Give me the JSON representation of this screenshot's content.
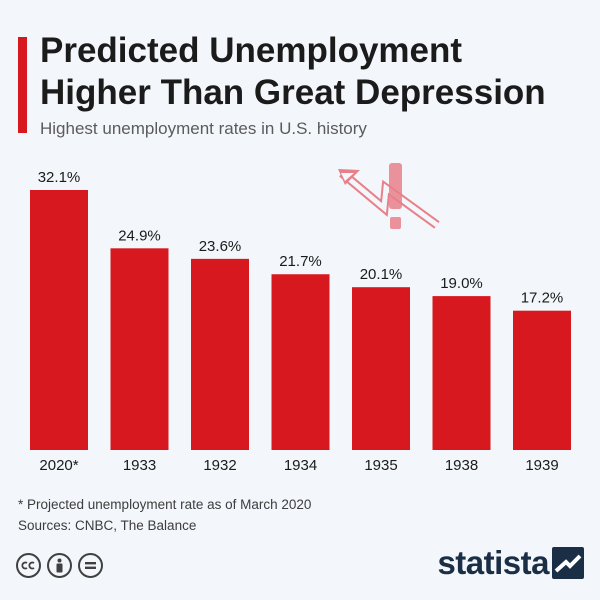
{
  "header": {
    "title": "Predicted Unemployment Higher Than Great Depression",
    "subtitle": "Highest unemployment rates in U.S. history"
  },
  "colors": {
    "accent": "#d7191f",
    "bar": "#d7191f",
    "background": "#f3f6fa",
    "brand": "#1a2e45",
    "warning_graphic": "#e8808a"
  },
  "chart_data": {
    "type": "bar",
    "categories": [
      "2020*",
      "1933",
      "1932",
      "1934",
      "1935",
      "1938",
      "1939"
    ],
    "values": [
      32.1,
      24.9,
      23.6,
      21.7,
      20.1,
      19.0,
      17.2
    ],
    "value_labels": [
      "32.1%",
      "24.9%",
      "23.6%",
      "21.7%",
      "20.1%",
      "19.0%",
      "17.2%"
    ],
    "title": "Predicted Unemployment Higher Than Great Depression",
    "subtitle": "Highest unemployment rates in U.S. history",
    "xlabel": "",
    "ylabel": "",
    "ylim": [
      0,
      32.1
    ],
    "grid": false
  },
  "footer": {
    "note": "* Projected unemployment rate as of March 2020",
    "sources": "Sources: CNBC, The Balance",
    "license_icons": [
      "cc-icon",
      "attribution-icon",
      "no-derivatives-icon"
    ],
    "brand": "statista"
  }
}
